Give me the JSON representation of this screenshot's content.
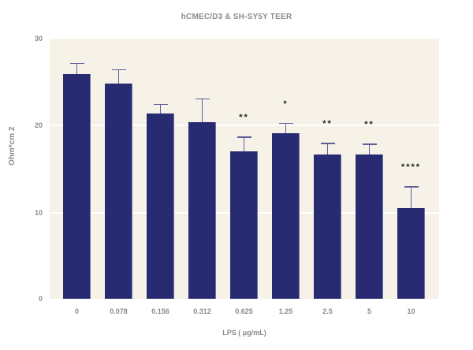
{
  "chart_data": {
    "type": "bar",
    "title": "hCMEC/D3 & SH-SY5Y TEER",
    "xlabel": "LPS ( μg/mL)",
    "ylabel": "Ohm*cm 2",
    "ylim": [
      0,
      30
    ],
    "yticks": [
      "0",
      "10",
      "20",
      "30"
    ],
    "grid": true,
    "categories": [
      "0",
      "0.078",
      "0.156",
      "0.312",
      "0.625",
      "1.25",
      "2.5",
      "5",
      "10"
    ],
    "values": [
      25.9,
      24.8,
      21.4,
      20.4,
      17.0,
      19.1,
      16.6,
      16.6,
      10.5
    ],
    "error_upper": [
      27.2,
      26.5,
      22.5,
      23.1,
      18.7,
      20.3,
      18.0,
      17.9,
      13.0
    ],
    "significance": [
      "",
      "",
      "",
      "",
      "**",
      "*",
      "**",
      "**",
      "****"
    ],
    "bar_color": "#282a72",
    "background_color": "#f7f2e8"
  }
}
